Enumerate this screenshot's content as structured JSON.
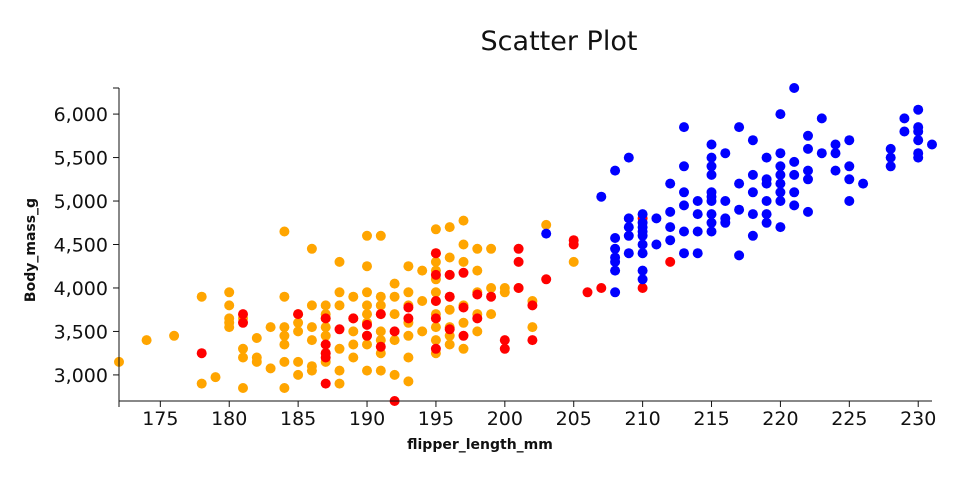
{
  "chart_data": {
    "type": "scatter",
    "title": "Scatter Plot",
    "xlabel": "flipper_length_mm",
    "ylabel": "Body_mass_g",
    "xlim": [
      172,
      231
    ],
    "ylim": [
      2700,
      6300
    ],
    "xticks": [
      175,
      180,
      185,
      190,
      195,
      200,
      205,
      210,
      215,
      220,
      225,
      230
    ],
    "yticks": [
      3000,
      3500,
      4000,
      4500,
      5000,
      5500,
      6000
    ],
    "ytick_labels": [
      "3,000",
      "3,500",
      "4,000",
      "4,500",
      "5,000",
      "5,500",
      "6,000"
    ],
    "grid": false,
    "legend": "none",
    "series": [
      {
        "color": "#ffa500",
        "points": [
          [
            172,
            3150
          ],
          [
            174,
            3400
          ],
          [
            176,
            3450
          ],
          [
            178,
            3900
          ],
          [
            178,
            2900
          ],
          [
            179,
            2975
          ],
          [
            180,
            3950
          ],
          [
            180,
            3800
          ],
          [
            180,
            3650
          ],
          [
            180,
            3600
          ],
          [
            180,
            3550
          ],
          [
            181,
            3300
          ],
          [
            181,
            3200
          ],
          [
            181,
            2850
          ],
          [
            181,
            3650
          ],
          [
            182,
            3200
          ],
          [
            182,
            3150
          ],
          [
            182,
            3425
          ],
          [
            183,
            3550
          ],
          [
            183,
            3075
          ],
          [
            184,
            4650
          ],
          [
            184,
            3900
          ],
          [
            184,
            3550
          ],
          [
            184,
            3450
          ],
          [
            184,
            3350
          ],
          [
            184,
            3150
          ],
          [
            184,
            2850
          ],
          [
            185,
            3700
          ],
          [
            185,
            3600
          ],
          [
            185,
            3500
          ],
          [
            185,
            3150
          ],
          [
            185,
            3000
          ],
          [
            186,
            4450
          ],
          [
            186,
            3800
          ],
          [
            186,
            3550
          ],
          [
            186,
            3400
          ],
          [
            186,
            3100
          ],
          [
            186,
            3050
          ],
          [
            187,
            3800
          ],
          [
            187,
            3700
          ],
          [
            187,
            3650
          ],
          [
            187,
            3550
          ],
          [
            187,
            3450
          ],
          [
            187,
            3350
          ],
          [
            187,
            3250
          ],
          [
            187,
            3150
          ],
          [
            188,
            4300
          ],
          [
            188,
            3950
          ],
          [
            188,
            3800
          ],
          [
            188,
            3300
          ],
          [
            188,
            3050
          ],
          [
            188,
            2900
          ],
          [
            189,
            3900
          ],
          [
            189,
            3650
          ],
          [
            189,
            3500
          ],
          [
            189,
            3350
          ],
          [
            189,
            3200
          ],
          [
            190,
            4600
          ],
          [
            190,
            4250
          ],
          [
            190,
            3950
          ],
          [
            190,
            3800
          ],
          [
            190,
            3700
          ],
          [
            190,
            3600
          ],
          [
            190,
            3450
          ],
          [
            190,
            3350
          ],
          [
            190,
            3050
          ],
          [
            191,
            4600
          ],
          [
            191,
            3900
          ],
          [
            191,
            3800
          ],
          [
            191,
            3700
          ],
          [
            191,
            3500
          ],
          [
            191,
            3400
          ],
          [
            191,
            3250
          ],
          [
            191,
            3050
          ],
          [
            192,
            4050
          ],
          [
            192,
            3900
          ],
          [
            192,
            3700
          ],
          [
            192,
            3400
          ],
          [
            192,
            3000
          ],
          [
            193,
            4250
          ],
          [
            193,
            3950
          ],
          [
            193,
            3800
          ],
          [
            193,
            3600
          ],
          [
            193,
            3450
          ],
          [
            193,
            3200
          ],
          [
            193,
            2925
          ],
          [
            194,
            4200
          ],
          [
            194,
            3850
          ],
          [
            194,
            3500
          ],
          [
            195,
            4675
          ],
          [
            195,
            4400
          ],
          [
            195,
            4300
          ],
          [
            195,
            4200
          ],
          [
            195,
            4100
          ],
          [
            195,
            3950
          ],
          [
            195,
            3850
          ],
          [
            195,
            3700
          ],
          [
            195,
            3550
          ],
          [
            195,
            3400
          ],
          [
            195,
            3250
          ],
          [
            196,
            4700
          ],
          [
            196,
            4350
          ],
          [
            196,
            4150
          ],
          [
            196,
            3900
          ],
          [
            196,
            3750
          ],
          [
            196,
            3550
          ],
          [
            196,
            3450
          ],
          [
            196,
            3350
          ],
          [
            197,
            4775
          ],
          [
            197,
            4500
          ],
          [
            197,
            4300
          ],
          [
            197,
            3800
          ],
          [
            197,
            3600
          ],
          [
            197,
            3300
          ],
          [
            198,
            4450
          ],
          [
            198,
            4200
          ],
          [
            198,
            3950
          ],
          [
            198,
            3700
          ],
          [
            198,
            3500
          ],
          [
            199,
            4450
          ],
          [
            199,
            4000
          ],
          [
            199,
            3700
          ],
          [
            200,
            3950
          ],
          [
            200,
            4000
          ],
          [
            201,
            4000
          ],
          [
            202,
            3850
          ],
          [
            202,
            3550
          ],
          [
            203,
            4725
          ],
          [
            205,
            4300
          ]
        ]
      },
      {
        "color": "#ff0000",
        "points": [
          [
            178,
            3250
          ],
          [
            181,
            3700
          ],
          [
            181,
            3600
          ],
          [
            185,
            3700
          ],
          [
            187,
            3650
          ],
          [
            187,
            3350
          ],
          [
            187,
            3250
          ],
          [
            187,
            3200
          ],
          [
            187,
            2900
          ],
          [
            188,
            3525
          ],
          [
            189,
            3650
          ],
          [
            190,
            3575
          ],
          [
            190,
            3450
          ],
          [
            191,
            3700
          ],
          [
            191,
            3325
          ],
          [
            192,
            2700
          ],
          [
            192,
            3500
          ],
          [
            193,
            3775
          ],
          [
            193,
            3650
          ],
          [
            195,
            4400
          ],
          [
            195,
            4150
          ],
          [
            195,
            3850
          ],
          [
            195,
            3650
          ],
          [
            195,
            3300
          ],
          [
            196,
            4150
          ],
          [
            196,
            3900
          ],
          [
            196,
            3525
          ],
          [
            197,
            4175
          ],
          [
            197,
            3775
          ],
          [
            197,
            3450
          ],
          [
            198,
            3925
          ],
          [
            198,
            3650
          ],
          [
            199,
            3900
          ],
          [
            200,
            3400
          ],
          [
            200,
            3300
          ],
          [
            201,
            4450
          ],
          [
            201,
            4300
          ],
          [
            201,
            4000
          ],
          [
            202,
            3800
          ],
          [
            202,
            3400
          ],
          [
            203,
            4100
          ],
          [
            205,
            4550
          ],
          [
            205,
            4500
          ],
          [
            206,
            3950
          ],
          [
            207,
            4000
          ],
          [
            210,
            4000
          ],
          [
            210,
            4800
          ],
          [
            212,
            4300
          ]
        ]
      },
      {
        "color": "#0000ff",
        "points": [
          [
            203,
            4625
          ],
          [
            207,
            5050
          ],
          [
            208,
            5350
          ],
          [
            208,
            4575
          ],
          [
            208,
            4450
          ],
          [
            208,
            4350
          ],
          [
            208,
            4300
          ],
          [
            208,
            4200
          ],
          [
            208,
            3950
          ],
          [
            209,
            5500
          ],
          [
            209,
            4800
          ],
          [
            209,
            4700
          ],
          [
            209,
            4600
          ],
          [
            209,
            4400
          ],
          [
            210,
            4850
          ],
          [
            210,
            4750
          ],
          [
            210,
            4700
          ],
          [
            210,
            4650
          ],
          [
            210,
            4600
          ],
          [
            210,
            4500
          ],
          [
            210,
            4400
          ],
          [
            210,
            4200
          ],
          [
            210,
            4100
          ],
          [
            211,
            4800
          ],
          [
            211,
            4500
          ],
          [
            212,
            5200
          ],
          [
            212,
            4875
          ],
          [
            212,
            4700
          ],
          [
            212,
            4550
          ],
          [
            213,
            5850
          ],
          [
            213,
            5400
          ],
          [
            213,
            5100
          ],
          [
            213,
            4950
          ],
          [
            213,
            4650
          ],
          [
            213,
            4400
          ],
          [
            214,
            5000
          ],
          [
            214,
            4850
          ],
          [
            214,
            4650
          ],
          [
            214,
            4400
          ],
          [
            215,
            5650
          ],
          [
            215,
            5500
          ],
          [
            215,
            5400
          ],
          [
            215,
            5300
          ],
          [
            215,
            5100
          ],
          [
            215,
            5050
          ],
          [
            215,
            5000
          ],
          [
            215,
            4850
          ],
          [
            215,
            4750
          ],
          [
            215,
            4650
          ],
          [
            216,
            5550
          ],
          [
            216,
            5000
          ],
          [
            216,
            4800
          ],
          [
            216,
            4750
          ],
          [
            217,
            5850
          ],
          [
            217,
            5200
          ],
          [
            217,
            4900
          ],
          [
            217,
            4375
          ],
          [
            218,
            5700
          ],
          [
            218,
            5300
          ],
          [
            218,
            5100
          ],
          [
            218,
            4850
          ],
          [
            218,
            4600
          ],
          [
            219,
            5500
          ],
          [
            219,
            5250
          ],
          [
            219,
            5200
          ],
          [
            219,
            5000
          ],
          [
            219,
            4750
          ],
          [
            219,
            4850
          ],
          [
            220,
            6000
          ],
          [
            220,
            5550
          ],
          [
            220,
            5400
          ],
          [
            220,
            5300
          ],
          [
            220,
            5200
          ],
          [
            220,
            5100
          ],
          [
            220,
            5000
          ],
          [
            220,
            4700
          ],
          [
            221,
            6300
          ],
          [
            221,
            5450
          ],
          [
            221,
            5300
          ],
          [
            221,
            5100
          ],
          [
            221,
            4950
          ],
          [
            222,
            5750
          ],
          [
            222,
            5600
          ],
          [
            222,
            5350
          ],
          [
            222,
            5250
          ],
          [
            222,
            4875
          ],
          [
            223,
            5950
          ],
          [
            223,
            5550
          ],
          [
            224,
            5650
          ],
          [
            224,
            5550
          ],
          [
            224,
            5350
          ],
          [
            225,
            5700
          ],
          [
            225,
            5400
          ],
          [
            225,
            5250
          ],
          [
            225,
            5000
          ],
          [
            226,
            5200
          ],
          [
            228,
            5600
          ],
          [
            228,
            5500
          ],
          [
            228,
            5400
          ],
          [
            229,
            5950
          ],
          [
            229,
            5800
          ],
          [
            230,
            6050
          ],
          [
            230,
            5850
          ],
          [
            230,
            5800
          ],
          [
            230,
            5700
          ],
          [
            230,
            5550
          ],
          [
            230,
            5500
          ],
          [
            231,
            5650
          ]
        ]
      }
    ]
  }
}
